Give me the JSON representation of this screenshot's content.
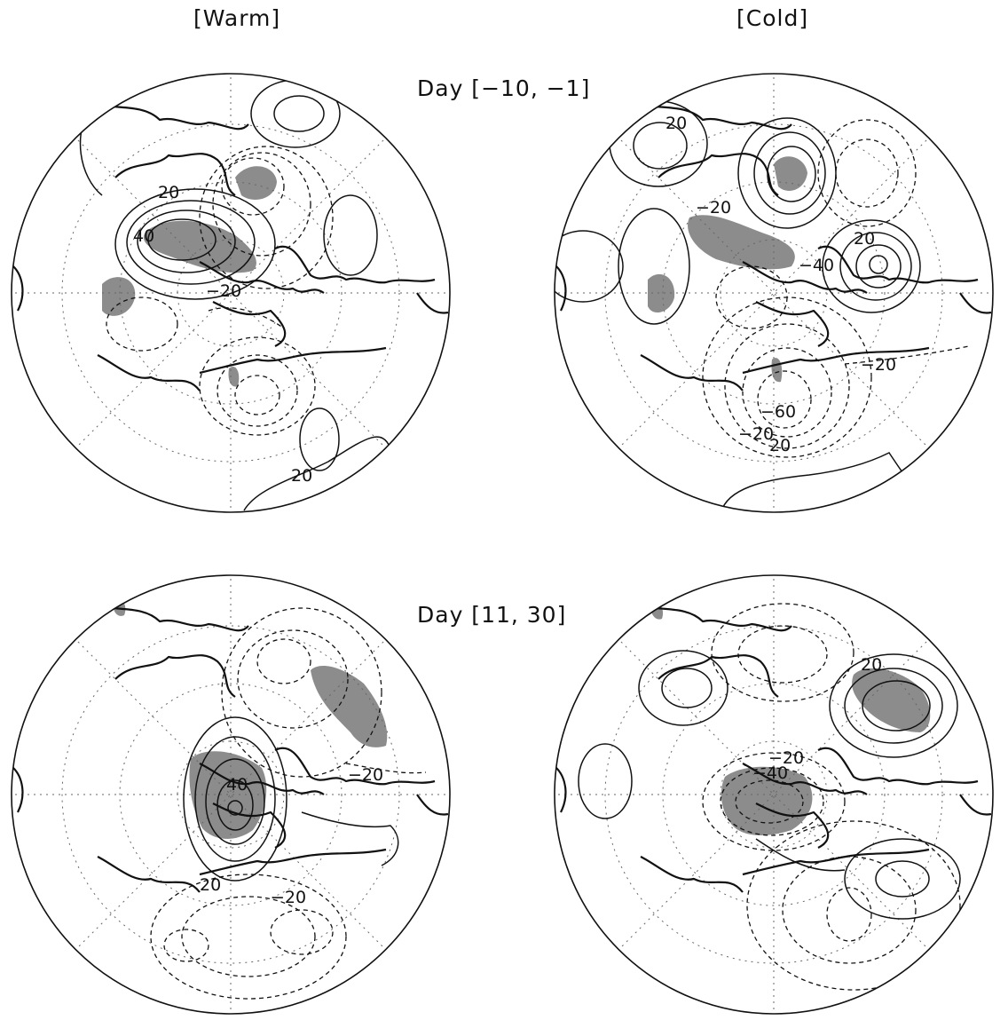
{
  "columns": {
    "warm": "[Warm]",
    "cold": "[Cold]"
  },
  "rows": {
    "early": "Day [−10, −1]",
    "late": "Day [11, 30]"
  },
  "colors": {
    "shading": "#8c8c8c",
    "contour": "#111111",
    "graticule": "#666666"
  },
  "panels": {
    "p1": {
      "labels": [
        "20",
        "40",
        "−20",
        "20"
      ]
    },
    "p2": {
      "labels": [
        "20",
        "−20",
        "20",
        "−40",
        "−20",
        "−60",
        "−20",
        "20"
      ]
    },
    "p3": {
      "labels": [
        "40",
        "−20",
        "20",
        "−20"
      ]
    },
    "p4": {
      "labels": [
        "20",
        "−20",
        "−40"
      ]
    }
  }
}
